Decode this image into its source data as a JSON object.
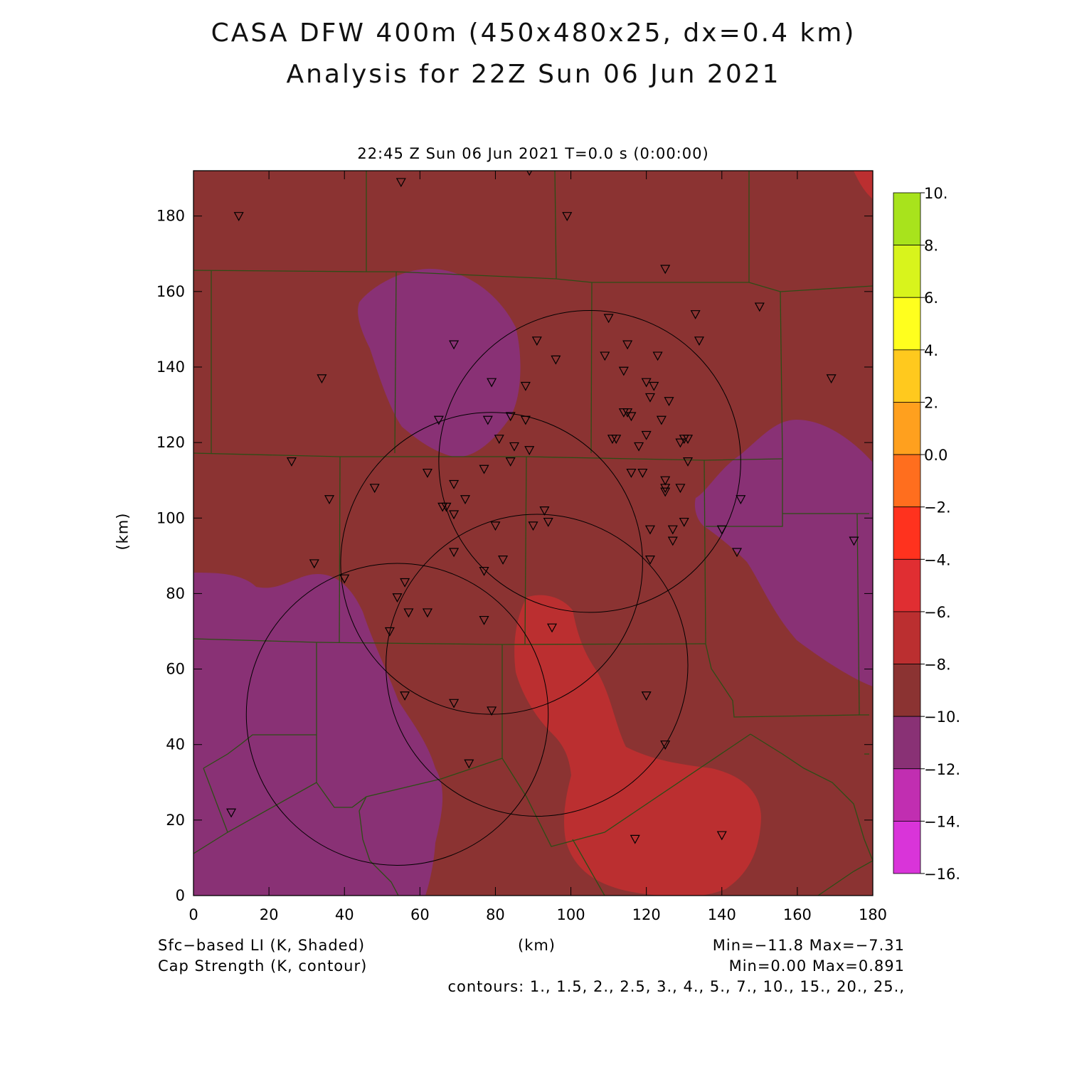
{
  "title": {
    "line1": "CASA DFW 400m (450x480x25, dx=0.4 km)",
    "line2": "Analysis for 22Z Sun 06 Jun 2021"
  },
  "subtitle": "22:45 Z Sun 06 Jun 2021    T=0.0 s (0:00:00)",
  "axes": {
    "x_unit": "(km)",
    "y_unit": "(km)",
    "x_ticks": [
      "0",
      "20",
      "40",
      "60",
      "80",
      "100",
      "120",
      "140",
      "160",
      "180"
    ],
    "y_ticks": [
      "0",
      "20",
      "40",
      "60",
      "80",
      "100",
      "120",
      "140",
      "160",
      "180"
    ],
    "xlim": [
      0,
      180
    ],
    "ylim": [
      0,
      192
    ]
  },
  "colorbar": {
    "labels": [
      "10.",
      "8.",
      "6.",
      "4.",
      "2.",
      "0.0",
      "−2.",
      "−4.",
      "−6.",
      "−8.",
      "−10.",
      "−12.",
      "−14.",
      "−16."
    ],
    "colors": [
      "#a8e31c",
      "#d8f41c",
      "#ffff1e",
      "#ffc91e",
      "#ffa01e",
      "#ff6e1e",
      "#ff321e",
      "#e02e32",
      "#bb2f30",
      "#8b3332",
      "#893175",
      "#c12eb1",
      "#d934d9"
    ]
  },
  "colors": {
    "ll_main": "#8b3332",
    "ll_purple": "#893175",
    "ll_red": "#bb2f30",
    "ll_red_light": "#e02e32",
    "county_lines": "#2d4d16"
  },
  "footer": {
    "left1": "Sfc−based LI (K, Shaded)",
    "left2": "Cap Strength (K, contour)",
    "center": "(km)",
    "right1": "Min=−11.8  Max=−7.31",
    "right2": "Min=0.00  Max=0.891",
    "contours": "contours: 1., 1.5, 2., 2.5, 3., 4., 5., 7., 10., 15., 20., 25.,"
  },
  "radar_rings_km": [
    {
      "x": 105,
      "y": 115,
      "r": 40
    },
    {
      "x": 79,
      "y": 88,
      "r": 40
    },
    {
      "x": 91,
      "y": 61,
      "r": 40
    },
    {
      "x": 54,
      "y": 48,
      "r": 40
    }
  ],
  "stations_km": [
    [
      55,
      189
    ],
    [
      89,
      192
    ],
    [
      12,
      180
    ],
    [
      99,
      180
    ],
    [
      125,
      166
    ],
    [
      150,
      156
    ],
    [
      133,
      154
    ],
    [
      110,
      153
    ],
    [
      134,
      147
    ],
    [
      115,
      146
    ],
    [
      91,
      147
    ],
    [
      69,
      146
    ],
    [
      96,
      142
    ],
    [
      109,
      143
    ],
    [
      123,
      143
    ],
    [
      114,
      139
    ],
    [
      34,
      137
    ],
    [
      79,
      136
    ],
    [
      120,
      136
    ],
    [
      122,
      135
    ],
    [
      88,
      135
    ],
    [
      169,
      137
    ],
    [
      121,
      132
    ],
    [
      126,
      131
    ],
    [
      114,
      128
    ],
    [
      115,
      128
    ],
    [
      116,
      127
    ],
    [
      65,
      126
    ],
    [
      78,
      126
    ],
    [
      84,
      127
    ],
    [
      88,
      126
    ],
    [
      124,
      126
    ],
    [
      81,
      121
    ],
    [
      111,
      121
    ],
    [
      112,
      121
    ],
    [
      120,
      122
    ],
    [
      130,
      121
    ],
    [
      131,
      121
    ],
    [
      129,
      120
    ],
    [
      85,
      119
    ],
    [
      89,
      118
    ],
    [
      118,
      119
    ],
    [
      26,
      115
    ],
    [
      84,
      115
    ],
    [
      131,
      115
    ],
    [
      62,
      112
    ],
    [
      77,
      113
    ],
    [
      119,
      112
    ],
    [
      116,
      112
    ],
    [
      125,
      110
    ],
    [
      69,
      109
    ],
    [
      125,
      108
    ],
    [
      125,
      107
    ],
    [
      48,
      108
    ],
    [
      129,
      108
    ],
    [
      36,
      105
    ],
    [
      72,
      105
    ],
    [
      145,
      105
    ],
    [
      66,
      103
    ],
    [
      67,
      103
    ],
    [
      93,
      102
    ],
    [
      69,
      101
    ],
    [
      94,
      99
    ],
    [
      130,
      99
    ],
    [
      90,
      98
    ],
    [
      80,
      98
    ],
    [
      127,
      97
    ],
    [
      121,
      97
    ],
    [
      140,
      97
    ],
    [
      175,
      94
    ],
    [
      127,
      94
    ],
    [
      144,
      91
    ],
    [
      69,
      91
    ],
    [
      82,
      89
    ],
    [
      32,
      88
    ],
    [
      121,
      89
    ],
    [
      77,
      86
    ],
    [
      40,
      84
    ],
    [
      56,
      83
    ],
    [
      54,
      79
    ],
    [
      57,
      75
    ],
    [
      62,
      75
    ],
    [
      77,
      73
    ],
    [
      95,
      71
    ],
    [
      52,
      70
    ],
    [
      120,
      53
    ],
    [
      56,
      53
    ],
    [
      69,
      51
    ],
    [
      79,
      49
    ],
    [
      125,
      40
    ],
    [
      73,
      35
    ],
    [
      10,
      22
    ],
    [
      117,
      15
    ],
    [
      140,
      16
    ]
  ]
}
